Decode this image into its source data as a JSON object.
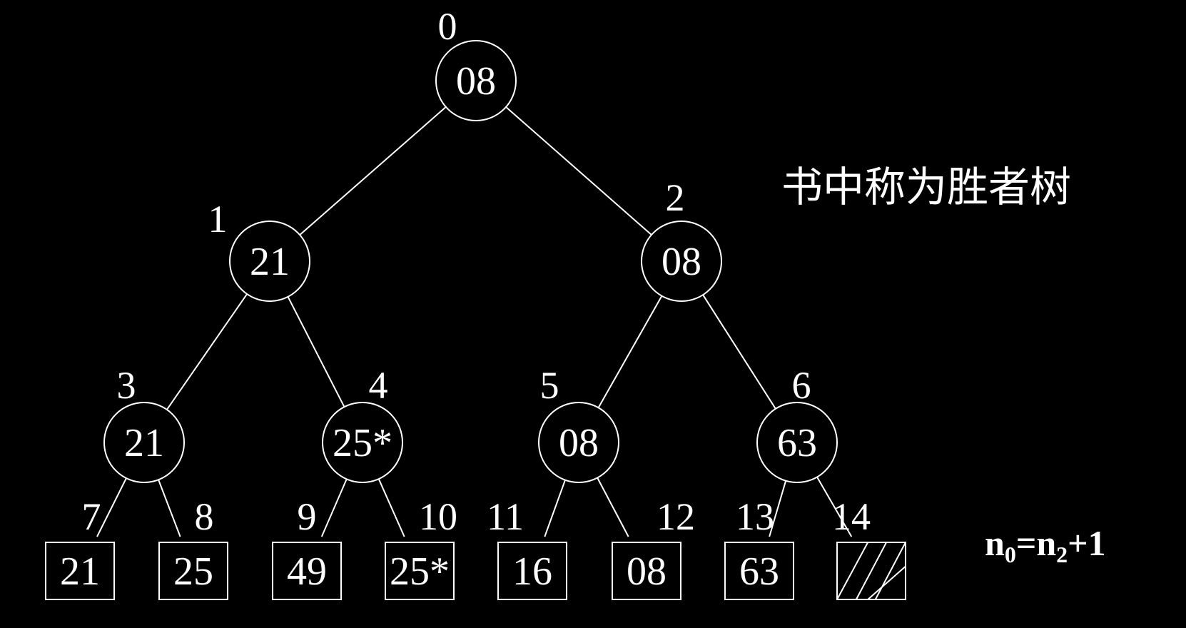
{
  "caption": "书中称为胜者树",
  "formula": {
    "n0": "n",
    "n0_sub": "0",
    "eq": "=",
    "n2": "n",
    "n2_sub": "2",
    "plus_one": "+1"
  },
  "nodes": [
    {
      "index": "0",
      "value": "08",
      "shape": "circle"
    },
    {
      "index": "1",
      "value": "21",
      "shape": "circle"
    },
    {
      "index": "2",
      "value": "08",
      "shape": "circle"
    },
    {
      "index": "3",
      "value": "21",
      "shape": "circle"
    },
    {
      "index": "4",
      "value": "25*",
      "shape": "circle"
    },
    {
      "index": "5",
      "value": "08",
      "shape": "circle"
    },
    {
      "index": "6",
      "value": "63",
      "shape": "circle"
    },
    {
      "index": "7",
      "value": "21",
      "shape": "square"
    },
    {
      "index": "8",
      "value": "25",
      "shape": "square"
    },
    {
      "index": "9",
      "value": "49",
      "shape": "square"
    },
    {
      "index": "10",
      "value": "25*",
      "shape": "square"
    },
    {
      "index": "11",
      "value": "16",
      "shape": "square"
    },
    {
      "index": "12",
      "value": "08",
      "shape": "square"
    },
    {
      "index": "13",
      "value": "63",
      "shape": "square"
    },
    {
      "index": "14",
      "value": "",
      "shape": "square-hatched"
    }
  ]
}
